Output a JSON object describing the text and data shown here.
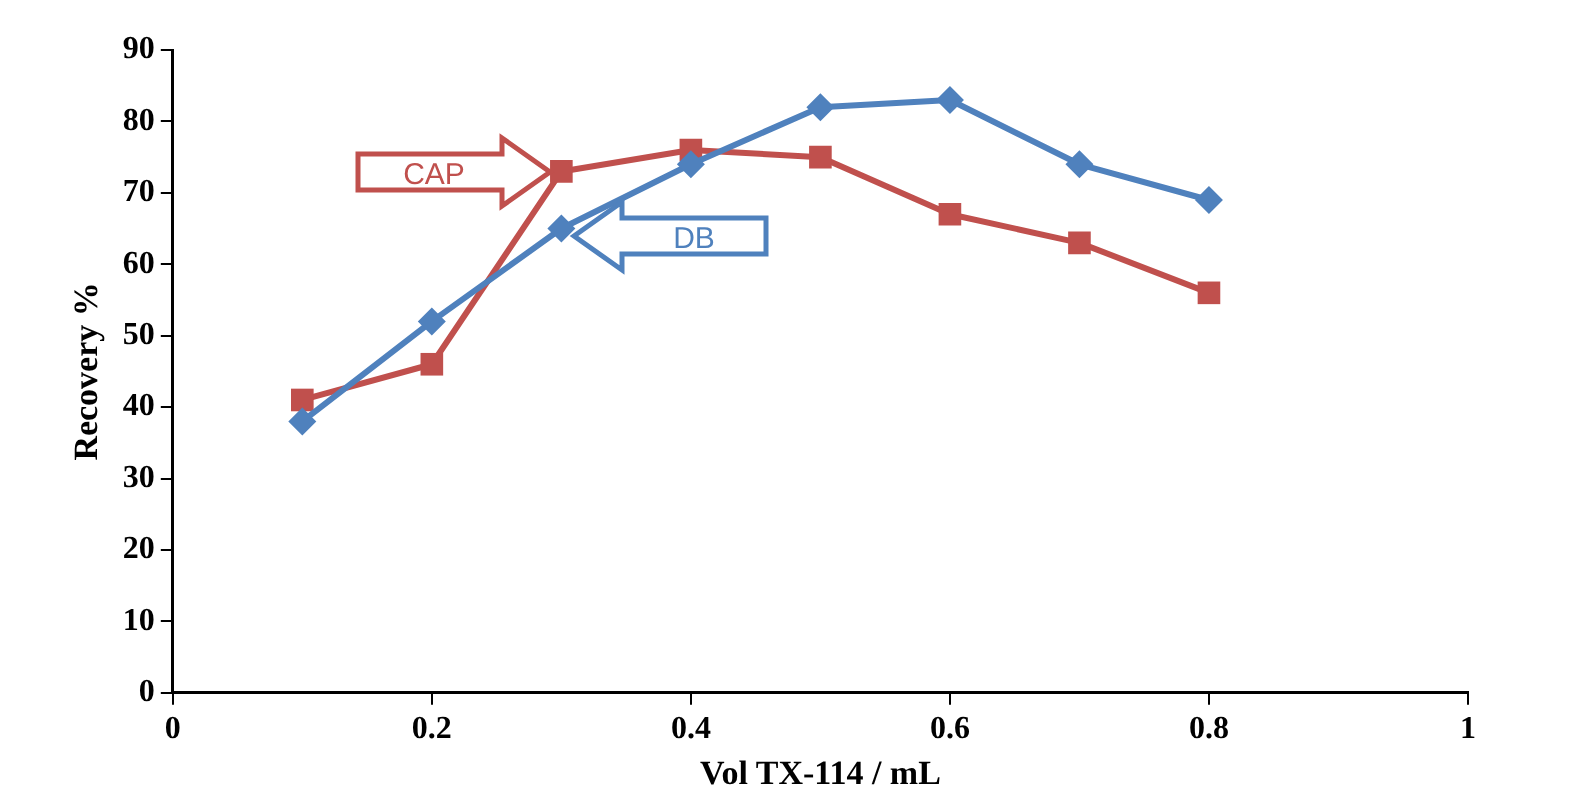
{
  "chart_data": {
    "type": "line",
    "xlabel": "Vol TX-114 / mL",
    "ylabel": "Recovery %",
    "x": [
      0.1,
      0.2,
      0.3,
      0.4,
      0.5,
      0.6,
      0.7,
      0.8
    ],
    "series": [
      {
        "name": "DB",
        "color": "#4f81bd",
        "marker": "diamond",
        "values": [
          38,
          52,
          65,
          74,
          82,
          83,
          74,
          69
        ]
      },
      {
        "name": "CAP",
        "color": "#c0504d",
        "marker": "square",
        "values": [
          41,
          46,
          73,
          76,
          75,
          67,
          63,
          56
        ]
      }
    ],
    "xlim": [
      0,
      1
    ],
    "xticks": [
      0,
      0.2,
      0.4,
      0.6,
      0.8,
      1
    ],
    "ylim": [
      0,
      90
    ],
    "yticks": [
      0,
      10,
      20,
      30,
      40,
      50,
      60,
      70,
      80,
      90
    ],
    "grid": false,
    "legend": false,
    "line_style": "solid"
  }
}
